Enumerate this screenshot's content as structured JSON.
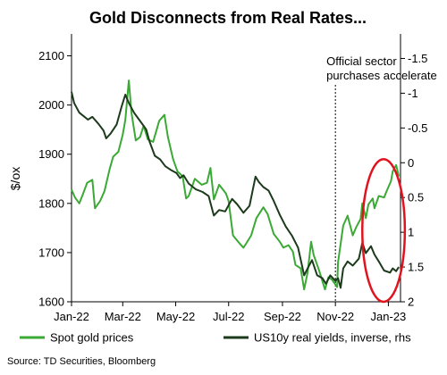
{
  "chart_data": {
    "type": "line",
    "title": "Gold Disconnects from Real Rates...",
    "ylabel": "$/ox",
    "source": "Source: TD Securities, Bloomberg",
    "annotation": {
      "line1": "Official sector",
      "line2": "purchases accelerate",
      "x": "2022-11-01"
    },
    "x_ticks": [
      "Jan-22",
      "Mar-22",
      "May-22",
      "Jul-22",
      "Sep-22",
      "Nov-22",
      "Jan-23"
    ],
    "x_tick_dates": [
      "2022-01-01",
      "2022-03-01",
      "2022-05-01",
      "2022-07-01",
      "2022-09-01",
      "2022-11-01",
      "2023-01-01"
    ],
    "x_range": [
      "2022-01-01",
      "2023-01-15"
    ],
    "y_left": {
      "ticks": [
        "1600",
        "1700",
        "1800",
        "1900",
        "2000",
        "2100"
      ],
      "range": [
        1600,
        2130
      ]
    },
    "y_right": {
      "ticks": [
        "-1.5",
        "-1",
        "-0.5",
        "0",
        "0.5",
        "1",
        "1.5",
        "2"
      ],
      "values": [
        -1.5,
        -1,
        -0.5,
        0,
        0.5,
        1,
        1.5,
        2
      ],
      "range": [
        -1.75,
        2
      ],
      "inverted": true
    },
    "highlight": {
      "shape": "ellipse",
      "color": "#e0141e",
      "x_from": "2022-12-02",
      "x_to": "2023-01-20",
      "y_from": 1890,
      "y_to": 1600
    },
    "series": [
      {
        "name": "Spot gold prices",
        "axis": "left",
        "color": "#3aaa35",
        "points": [
          [
            "2022-01-01",
            1828
          ],
          [
            "2022-01-05",
            1812
          ],
          [
            "2022-01-10",
            1800
          ],
          [
            "2022-01-14",
            1818
          ],
          [
            "2022-01-19",
            1842
          ],
          [
            "2022-01-25",
            1848
          ],
          [
            "2022-01-28",
            1790
          ],
          [
            "2022-02-03",
            1805
          ],
          [
            "2022-02-08",
            1825
          ],
          [
            "2022-02-14",
            1870
          ],
          [
            "2022-02-18",
            1895
          ],
          [
            "2022-02-24",
            1905
          ],
          [
            "2022-03-01",
            1940
          ],
          [
            "2022-03-04",
            1970
          ],
          [
            "2022-03-08",
            2050
          ],
          [
            "2022-03-11",
            1985
          ],
          [
            "2022-03-16",
            1928
          ],
          [
            "2022-03-21",
            1935
          ],
          [
            "2022-03-25",
            1958
          ],
          [
            "2022-03-30",
            1930
          ],
          [
            "2022-04-05",
            1925
          ],
          [
            "2022-04-12",
            1968
          ],
          [
            "2022-04-18",
            1980
          ],
          [
            "2022-04-22",
            1935
          ],
          [
            "2022-04-28",
            1890
          ],
          [
            "2022-05-03",
            1865
          ],
          [
            "2022-05-09",
            1855
          ],
          [
            "2022-05-13",
            1810
          ],
          [
            "2022-05-16",
            1815
          ],
          [
            "2022-05-23",
            1850
          ],
          [
            "2022-05-31",
            1838
          ],
          [
            "2022-06-06",
            1842
          ],
          [
            "2022-06-10",
            1872
          ],
          [
            "2022-06-14",
            1808
          ],
          [
            "2022-06-20",
            1838
          ],
          [
            "2022-06-28",
            1820
          ],
          [
            "2022-07-01",
            1805
          ],
          [
            "2022-07-06",
            1735
          ],
          [
            "2022-07-12",
            1722
          ],
          [
            "2022-07-18",
            1710
          ],
          [
            "2022-07-21",
            1718
          ],
          [
            "2022-07-27",
            1735
          ],
          [
            "2022-08-02",
            1770
          ],
          [
            "2022-08-10",
            1792
          ],
          [
            "2022-08-15",
            1778
          ],
          [
            "2022-08-22",
            1738
          ],
          [
            "2022-08-29",
            1722
          ],
          [
            "2022-09-02",
            1710
          ],
          [
            "2022-09-08",
            1715
          ],
          [
            "2022-09-13",
            1702
          ],
          [
            "2022-09-16",
            1675
          ],
          [
            "2022-09-22",
            1668
          ],
          [
            "2022-09-26",
            1625
          ],
          [
            "2022-09-30",
            1660
          ],
          [
            "2022-10-04",
            1722
          ],
          [
            "2022-10-07",
            1695
          ],
          [
            "2022-10-13",
            1665
          ],
          [
            "2022-10-20",
            1625
          ],
          [
            "2022-10-24",
            1650
          ],
          [
            "2022-10-28",
            1645
          ],
          [
            "2022-11-01",
            1635
          ],
          [
            "2022-11-03",
            1630
          ],
          [
            "2022-11-04",
            1680
          ],
          [
            "2022-11-10",
            1755
          ],
          [
            "2022-11-15",
            1775
          ],
          [
            "2022-11-21",
            1735
          ],
          [
            "2022-11-25",
            1752
          ],
          [
            "2022-11-30",
            1768
          ],
          [
            "2022-12-02",
            1800
          ],
          [
            "2022-12-06",
            1770
          ],
          [
            "2022-12-09",
            1798
          ],
          [
            "2022-12-14",
            1810
          ],
          [
            "2022-12-16",
            1790
          ],
          [
            "2022-12-21",
            1815
          ],
          [
            "2022-12-27",
            1812
          ],
          [
            "2022-12-30",
            1825
          ],
          [
            "2023-01-04",
            1845
          ],
          [
            "2023-01-06",
            1865
          ],
          [
            "2023-01-10",
            1878
          ],
          [
            "2023-01-13",
            1855
          ]
        ]
      },
      {
        "name": "US10y real yields, inverse, rhs",
        "axis": "right",
        "color": "#1c3a1c",
        "points": [
          [
            "2022-01-01",
            -1.02
          ],
          [
            "2022-01-04",
            -0.86
          ],
          [
            "2022-01-10",
            -0.72
          ],
          [
            "2022-01-14",
            -0.68
          ],
          [
            "2022-01-20",
            -0.62
          ],
          [
            "2022-01-25",
            -0.66
          ],
          [
            "2022-02-01",
            -0.56
          ],
          [
            "2022-02-07",
            -0.46
          ],
          [
            "2022-02-10",
            -0.35
          ],
          [
            "2022-02-15",
            -0.42
          ],
          [
            "2022-02-22",
            -0.55
          ],
          [
            "2022-02-28",
            -0.82
          ],
          [
            "2022-03-04",
            -0.98
          ],
          [
            "2022-03-08",
            -0.86
          ],
          [
            "2022-03-14",
            -0.72
          ],
          [
            "2022-03-21",
            -0.6
          ],
          [
            "2022-03-28",
            -0.48
          ],
          [
            "2022-04-01",
            -0.3
          ],
          [
            "2022-04-07",
            -0.1
          ],
          [
            "2022-04-13",
            -0.05
          ],
          [
            "2022-04-19",
            0.05
          ],
          [
            "2022-04-25",
            0.1
          ],
          [
            "2022-05-02",
            0.15
          ],
          [
            "2022-05-06",
            0.22
          ],
          [
            "2022-05-10",
            0.18
          ],
          [
            "2022-05-16",
            0.3
          ],
          [
            "2022-05-24",
            0.38
          ],
          [
            "2022-06-01",
            0.42
          ],
          [
            "2022-06-08",
            0.48
          ],
          [
            "2022-06-14",
            0.76
          ],
          [
            "2022-06-20",
            0.68
          ],
          [
            "2022-06-27",
            0.7
          ],
          [
            "2022-07-05",
            0.52
          ],
          [
            "2022-07-11",
            0.6
          ],
          [
            "2022-07-18",
            0.72
          ],
          [
            "2022-07-25",
            0.62
          ],
          [
            "2022-08-01",
            0.2
          ],
          [
            "2022-08-05",
            0.28
          ],
          [
            "2022-08-10",
            0.35
          ],
          [
            "2022-08-16",
            0.4
          ],
          [
            "2022-08-22",
            0.55
          ],
          [
            "2022-08-29",
            0.75
          ],
          [
            "2022-09-05",
            0.92
          ],
          [
            "2022-09-12",
            1.05
          ],
          [
            "2022-09-19",
            1.22
          ],
          [
            "2022-09-26",
            1.62
          ],
          [
            "2022-09-30",
            1.52
          ],
          [
            "2022-10-05",
            1.4
          ],
          [
            "2022-10-11",
            1.62
          ],
          [
            "2022-10-17",
            1.66
          ],
          [
            "2022-10-21",
            1.74
          ],
          [
            "2022-10-26",
            1.62
          ],
          [
            "2022-11-01",
            1.7
          ],
          [
            "2022-11-04",
            1.66
          ],
          [
            "2022-11-07",
            1.8
          ],
          [
            "2022-11-10",
            1.52
          ],
          [
            "2022-11-15",
            1.42
          ],
          [
            "2022-11-21",
            1.48
          ],
          [
            "2022-11-28",
            1.38
          ],
          [
            "2022-12-02",
            1.15
          ],
          [
            "2022-12-06",
            1.3
          ],
          [
            "2022-12-12",
            1.2
          ],
          [
            "2022-12-16",
            1.32
          ],
          [
            "2022-12-21",
            1.42
          ],
          [
            "2022-12-27",
            1.55
          ],
          [
            "2023-01-03",
            1.58
          ],
          [
            "2023-01-06",
            1.52
          ],
          [
            "2023-01-10",
            1.56
          ],
          [
            "2023-01-13",
            1.5
          ]
        ]
      }
    ],
    "legend": {
      "position": "bottom"
    },
    "grid": false
  }
}
